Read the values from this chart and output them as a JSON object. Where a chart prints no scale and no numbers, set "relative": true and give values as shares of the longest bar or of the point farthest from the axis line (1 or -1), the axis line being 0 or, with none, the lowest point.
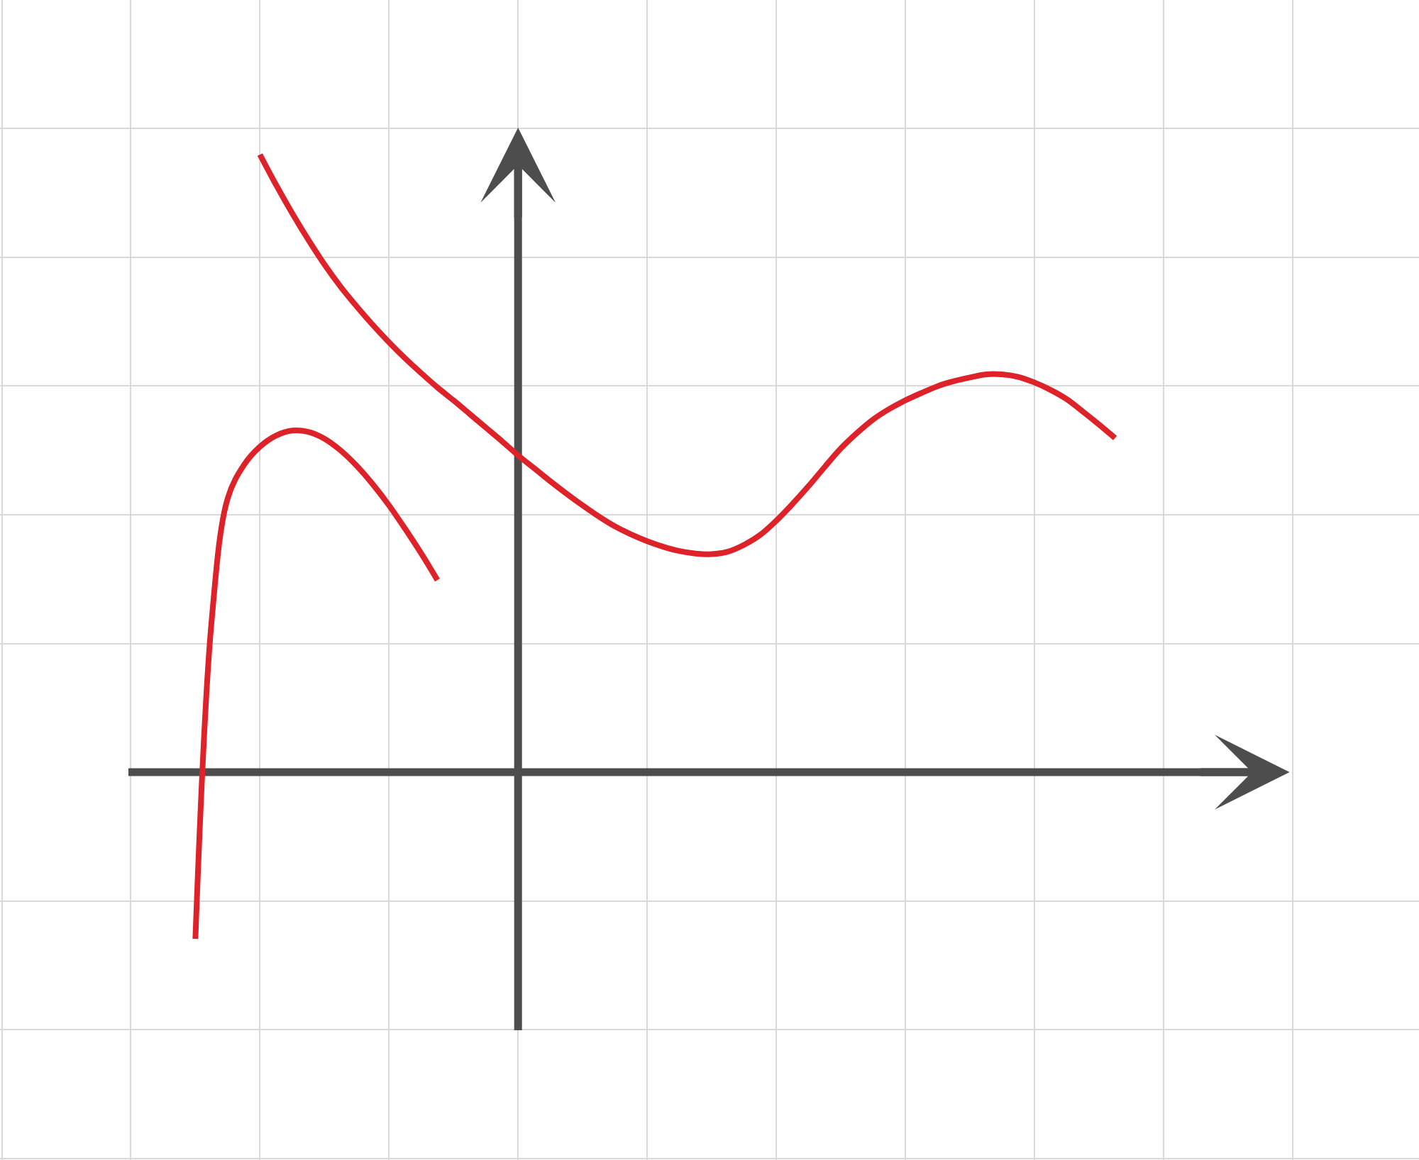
{
  "chart_data": {
    "type": "line",
    "relative": true,
    "grid": true,
    "line_style": "solid",
    "marker": "none",
    "categories": [
      null,
      null,
      null,
      null,
      null,
      null,
      null,
      null,
      null,
      null,
      null,
      null,
      null,
      null,
      null,
      null,
      null,
      null,
      null,
      null,
      null,
      null,
      null,
      null,
      null,
      null,
      null,
      null,
      null,
      null,
      null,
      null,
      null,
      null,
      null,
      null,
      null,
      null,
      null,
      null,
      null,
      null,
      null,
      null,
      null,
      null,
      null,
      null,
      null,
      null,
      null,
      null,
      null,
      null,
      null,
      null,
      null,
      null,
      null,
      null,
      null,
      null,
      null,
      null,
      null,
      null,
      null,
      null,
      null,
      null,
      null,
      null,
      null,
      null,
      null,
      null,
      null,
      null,
      null,
      null,
      null,
      null,
      null,
      null,
      null,
      null,
      null,
      null
    ],
    "series": [
      {
        "color": "#dd2229",
        "values": [
          null,
          null,
          null,
          null,
          null,
          null,
          null,
          null,
          null,
          null,
          null,
          null,
          -0.27,
          0.243,
          0.443,
          0.497,
          0.527,
          0.545,
          0.553,
          0.551,
          0.54,
          0.521,
          0.496,
          0.466,
          0.432,
          0.394,
          0.354,
          0.311,
          null,
          null,
          null,
          null,
          null,
          null,
          null,
          null,
          null,
          null,
          null,
          null,
          null,
          null,
          null,
          null,
          null,
          null,
          null,
          null,
          null,
          null,
          null,
          null,
          null,
          null,
          null,
          null,
          null,
          null,
          null,
          null,
          null,
          null,
          null,
          null,
          null,
          null,
          null,
          null,
          null,
          null,
          null,
          null,
          null,
          null,
          null,
          null,
          null,
          null,
          null,
          null,
          null,
          null,
          null,
          null,
          null,
          null,
          null,
          null
        ]
      },
      {
        "color": "#dd2229",
        "values": [
          null,
          null,
          null,
          null,
          null,
          null,
          null,
          null,
          null,
          null,
          null,
          null,
          null,
          null,
          null,
          null,
          1.0,
          0.951,
          0.905,
          0.862,
          0.822,
          0.786,
          0.754,
          0.724,
          0.696,
          0.67,
          0.646,
          0.623,
          0.602,
          0.58,
          0.558,
          0.536,
          0.513,
          0.492,
          0.471,
          0.451,
          0.432,
          0.414,
          0.398,
          0.385,
          0.374,
          0.365,
          0.358,
          0.354,
          0.353,
          0.357,
          0.368,
          0.384,
          0.407,
          0.434,
          0.463,
          0.494,
          0.524,
          0.549,
          0.571,
          0.588,
          0.602,
          0.614,
          0.625,
          0.633,
          0.639,
          0.644,
          0.644,
          0.64,
          0.631,
          0.619,
          0.604,
          0.584,
          0.563,
          0.541,
          null,
          null,
          null,
          null,
          null,
          null,
          null,
          null,
          null,
          null,
          null,
          null,
          null,
          null,
          null,
          null,
          null,
          null
        ]
      }
    ],
    "ref_lines": [
      {
        "axis": "y",
        "value": 0,
        "color": "#4d4d4d"
      }
    ]
  }
}
